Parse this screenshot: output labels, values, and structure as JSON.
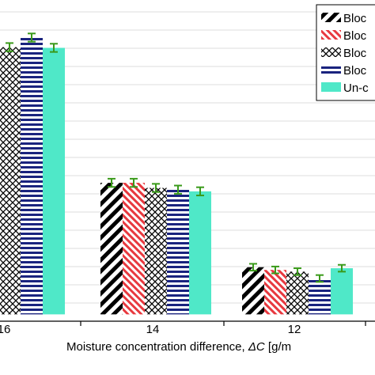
{
  "chart_data": {
    "type": "bar",
    "xlabel_prefix": "Moisture concentration difference, ",
    "xlabel_symbol": "ΔC",
    "xlabel_suffix": " [g/m",
    "categories": [
      "16",
      "14",
      "12"
    ],
    "series": [
      {
        "name": "Bloc",
        "pattern": "diagonal-black",
        "color": "#000000",
        "values": [
          7.95,
          3.85,
          1.38
        ],
        "errors": [
          0.12,
          0.12,
          0.1
        ]
      },
      {
        "name": "Bloc",
        "pattern": "diagonal-red",
        "color": "#e8393f",
        "values": [
          7.9,
          3.85,
          1.3
        ],
        "errors": [
          0.12,
          0.12,
          0.1
        ]
      },
      {
        "name": "Bloc",
        "pattern": "cross-hatch",
        "color": "#000000",
        "values": [
          7.82,
          3.7,
          1.25
        ],
        "errors": [
          0.12,
          0.12,
          0.1
        ]
      },
      {
        "name": "Bloc",
        "pattern": "horizontal-navy",
        "color": "#1a237e",
        "values": [
          8.1,
          3.65,
          1.05
        ],
        "errors": [
          0.12,
          0.12,
          0.1
        ]
      },
      {
        "name": "Un-c",
        "pattern": "solid-teal",
        "color": "#4fe8c8",
        "values": [
          7.8,
          3.6,
          1.35
        ],
        "errors": [
          0.12,
          0.12,
          0.1
        ]
      }
    ],
    "ylim": [
      -0.2,
      9.2
    ],
    "grid": true,
    "legend_position": "top-right",
    "error_bar_color": "#3a9a1a"
  }
}
